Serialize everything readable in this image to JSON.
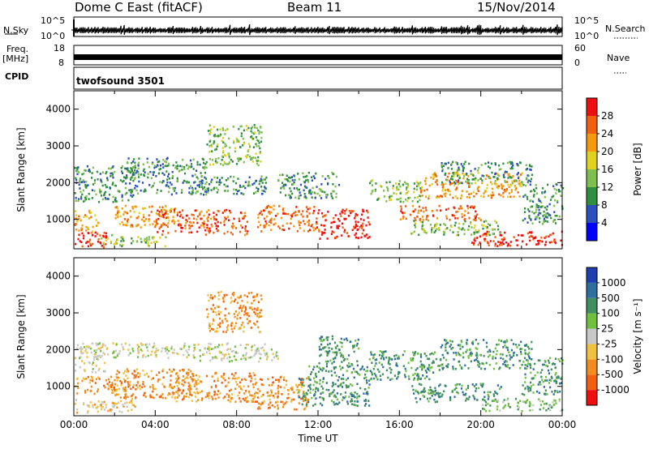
{
  "header": {
    "radar": "Dome C East (fitACF)",
    "beam": "Beam 11",
    "date": "15/Nov/2014"
  },
  "top_panels": {
    "nsky_label": "N.Sky",
    "nsky_ticks": [
      "10^5",
      "10^0"
    ],
    "nsearch_label": "N.Search",
    "nsearch_ticks": [
      "10^5",
      "10^0"
    ],
    "freq_label": "Freq.",
    "freq_unit": "[MHz]",
    "freq_ticks": [
      "18",
      "8"
    ],
    "nave_label": "Nave",
    "nave_ticks": [
      "60",
      "0"
    ],
    "cpid_label": "CPID",
    "cpid_value": "twofsound 3501"
  },
  "chart_data": [
    {
      "type": "heatmap",
      "name": "Power",
      "ylabel": "Slant Range [km]",
      "ylim": [
        200,
        4500
      ],
      "yticks": [
        1000,
        2000,
        3000,
        4000
      ],
      "xlim": [
        0,
        24
      ],
      "colorbar_label": "Power [dB]",
      "colorbar_ticks": [
        "28",
        "24",
        "20",
        "16",
        "12",
        "8",
        "4"
      ],
      "colors": [
        "#0000ff",
        "#2b4fbf",
        "#2f8f3f",
        "#7fbf4f",
        "#e0d020",
        "#f59a10",
        "#f06010",
        "#ee1010"
      ],
      "scatter_regions": [
        {
          "t0": 0.0,
          "t1": 1.6,
          "r0": 260,
          "r1": 700,
          "level": 7
        },
        {
          "t0": 0.0,
          "t1": 1.2,
          "r0": 700,
          "r1": 1300,
          "level": 5
        },
        {
          "t0": 0.0,
          "t1": 3.0,
          "r0": 1500,
          "r1": 2500,
          "level": 2
        },
        {
          "t0": 1.2,
          "t1": 4.5,
          "r0": 300,
          "r1": 600,
          "level": 3
        },
        {
          "t0": 2.0,
          "t1": 5.0,
          "r0": 800,
          "r1": 1400,
          "level": 5
        },
        {
          "t0": 2.5,
          "t1": 6.5,
          "r0": 1700,
          "r1": 2700,
          "level": 2
        },
        {
          "t0": 4.0,
          "t1": 8.5,
          "r0": 600,
          "r1": 1300,
          "level": 6
        },
        {
          "t0": 6.5,
          "t1": 9.2,
          "r0": 2500,
          "r1": 3600,
          "level": 3
        },
        {
          "t0": 6.0,
          "t1": 9.5,
          "r0": 1700,
          "r1": 2200,
          "level": 2
        },
        {
          "t0": 9.0,
          "t1": 12.0,
          "r0": 700,
          "r1": 1400,
          "level": 6
        },
        {
          "t0": 10.0,
          "t1": 13.0,
          "r0": 1600,
          "r1": 2300,
          "level": 2
        },
        {
          "t0": 12.0,
          "t1": 14.5,
          "r0": 500,
          "r1": 1300,
          "level": 7
        },
        {
          "t0": 14.5,
          "t1": 17.0,
          "r0": 1500,
          "r1": 2100,
          "level": 3
        },
        {
          "t0": 16.0,
          "t1": 20.0,
          "r0": 1000,
          "r1": 1400,
          "level": 6
        },
        {
          "t0": 17.0,
          "t1": 22.0,
          "r0": 1600,
          "r1": 2300,
          "level": 5
        },
        {
          "t0": 18.0,
          "t1": 22.5,
          "r0": 2000,
          "r1": 2600,
          "level": 2
        },
        {
          "t0": 19.5,
          "t1": 24.0,
          "r0": 300,
          "r1": 700,
          "level": 7
        },
        {
          "t0": 16.5,
          "t1": 21.0,
          "r0": 600,
          "r1": 1000,
          "level": 3
        },
        {
          "t0": 22.0,
          "t1": 24.0,
          "r0": 900,
          "r1": 2000,
          "level": 2
        }
      ]
    },
    {
      "type": "heatmap",
      "name": "Velocity",
      "ylabel": "Slant Range [km]",
      "ylim": [
        200,
        4500
      ],
      "yticks": [
        1000,
        2000,
        3000,
        4000
      ],
      "xlim": [
        0,
        24
      ],
      "xticks": [
        "00:00",
        "04:00",
        "08:00",
        "12:00",
        "16:00",
        "20:00",
        "00:00"
      ],
      "xlabel": "Time UT",
      "colorbar_label": "Velocity [m s⁻¹]",
      "colorbar_ticks": [
        "1000",
        "500",
        "100",
        "25",
        "-25",
        "-100",
        "-500",
        "-1000"
      ],
      "colors": [
        "#ee1010",
        "#f06010",
        "#f08c20",
        "#f0c040",
        "#c8c8c8",
        "#70c040",
        "#3f8f5f",
        "#2f6fa0",
        "#1f3fb0"
      ],
      "scatter_regions": [
        {
          "t0": 0.0,
          "t1": 3.0,
          "r0": 300,
          "r1": 700,
          "level": 3
        },
        {
          "t0": 0.0,
          "t1": 2.5,
          "r0": 800,
          "r1": 1300,
          "level": 2
        },
        {
          "t0": 1.0,
          "t1": 6.0,
          "r0": 1800,
          "r1": 2200,
          "level": 4
        },
        {
          "t0": 2.0,
          "t1": 6.0,
          "r0": 700,
          "r1": 1500,
          "level": 2
        },
        {
          "t0": 5.0,
          "t1": 9.0,
          "r0": 600,
          "r1": 1400,
          "level": 2
        },
        {
          "t0": 6.5,
          "t1": 9.2,
          "r0": 2500,
          "r1": 3600,
          "level": 2
        },
        {
          "t0": 6.0,
          "t1": 10.0,
          "r0": 1700,
          "r1": 2200,
          "level": 4
        },
        {
          "t0": 9.0,
          "t1": 11.5,
          "r0": 400,
          "r1": 1300,
          "level": 2
        },
        {
          "t0": 11.0,
          "t1": 14.5,
          "r0": 500,
          "r1": 1600,
          "level": 6
        },
        {
          "t0": 12.0,
          "t1": 14.0,
          "r0": 1600,
          "r1": 2400,
          "level": 6
        },
        {
          "t0": 14.5,
          "t1": 18.0,
          "r0": 1200,
          "r1": 2000,
          "level": 6
        },
        {
          "t0": 16.5,
          "t1": 21.0,
          "r0": 600,
          "r1": 1100,
          "level": 6
        },
        {
          "t0": 18.0,
          "t1": 22.5,
          "r0": 1500,
          "r1": 2300,
          "level": 6
        },
        {
          "t0": 20.0,
          "t1": 24.0,
          "r0": 350,
          "r1": 700,
          "level": 5
        },
        {
          "t0": 22.0,
          "t1": 24.0,
          "r0": 800,
          "r1": 1800,
          "level": 6
        },
        {
          "t0": 0.0,
          "t1": 1.5,
          "r0": 1400,
          "r1": 2200,
          "level": 4
        }
      ]
    }
  ]
}
